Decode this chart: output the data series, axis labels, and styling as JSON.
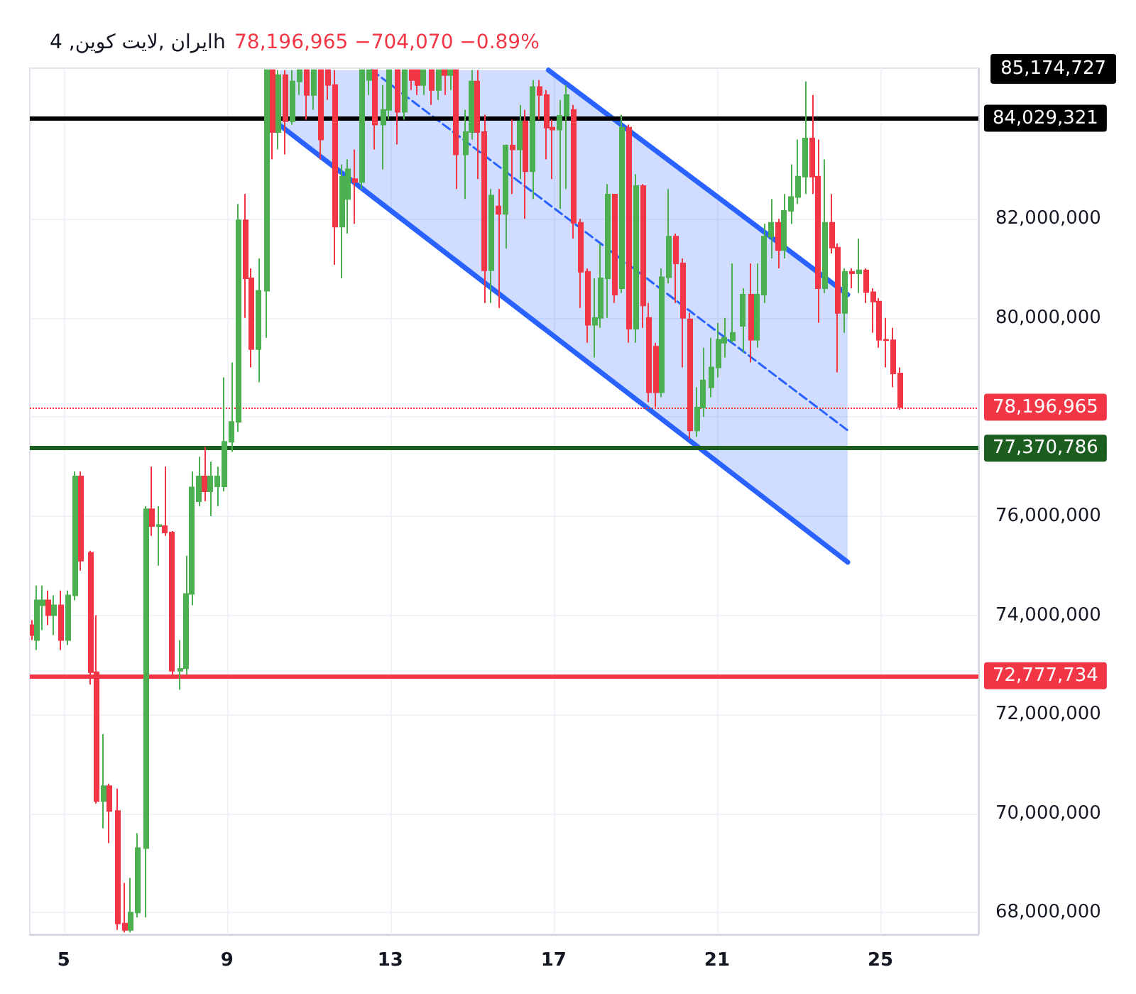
{
  "chart_data": {
    "type": "candlestick",
    "title": "ایران ,لایت کوین, 4h",
    "subtitle": "78,196,965 −704,070 −0.89%",
    "x": [
      4.24,
      4.34,
      4.48,
      4.62,
      4.76,
      4.93,
      5.1,
      5.28,
      5.42,
      5.66,
      5.8,
      5.97,
      6.11,
      6.31,
      6.49,
      6.63,
      6.8,
      7.01,
      7.15,
      7.32,
      7.49,
      7.66,
      7.84,
      8.01,
      8.15,
      8.32,
      8.46,
      8.6,
      8.77,
      8.94,
      9.12,
      9.29,
      9.46,
      9.6,
      9.78,
      9.98,
      10.12,
      10.26,
      10.43,
      10.61,
      10.78,
      10.95,
      11.12,
      11.3,
      11.47,
      11.64,
      11.82,
      11.96,
      12.13,
      12.3,
      12.47,
      12.61,
      12.82,
      12.96,
      13.17,
      13.34,
      13.51,
      13.65,
      13.82,
      14.0,
      14.17,
      14.34,
      14.48,
      14.62,
      14.83,
      15.0,
      15.14,
      15.31,
      15.48,
      15.66,
      15.83,
      16.0,
      16.18,
      16.31,
      16.49,
      16.66,
      16.83,
      16.97,
      17.15,
      17.32,
      17.49,
      17.66,
      17.84,
      18.01,
      18.15,
      18.32,
      18.49,
      18.67,
      18.84,
      19.01,
      19.19,
      19.33,
      19.5,
      19.64,
      19.81,
      19.98,
      20.16,
      20.33,
      20.5,
      20.67,
      20.85,
      21.02,
      21.19,
      21.37,
      21.64,
      21.82,
      21.99,
      22.16,
      22.34,
      22.51,
      22.65,
      22.82,
      22.99,
      23.17,
      23.34,
      23.48,
      23.65,
      23.82,
      23.96,
      24.13,
      24.31,
      24.48,
      24.65,
      24.83,
      24.97,
      25.14,
      25.31,
      25.48
    ],
    "ohlc": [
      [
        73800000,
        73900000,
        73500000,
        73600000
      ],
      [
        73500000,
        74600000,
        73300000,
        74300000
      ],
      [
        74200000,
        74600000,
        73700000,
        74300000
      ],
      [
        74300000,
        74500000,
        73800000,
        74000000
      ],
      [
        74000000,
        74400000,
        73600000,
        74200000
      ],
      [
        74200000,
        74500000,
        73300000,
        73500000
      ],
      [
        73500000,
        74500000,
        73400000,
        74400000
      ],
      [
        74400000,
        76900000,
        74300000,
        76800000
      ],
      [
        76800000,
        76900000,
        74900000,
        75100000
      ],
      [
        75260000,
        75300000,
        72600000,
        72850000
      ],
      [
        72850000,
        74000000,
        70200000,
        70250000
      ],
      [
        70250000,
        71600000,
        69700000,
        70550000
      ],
      [
        70550000,
        70600000,
        69400000,
        70050000
      ],
      [
        70050000,
        70500000,
        67650000,
        67780000
      ],
      [
        67780000,
        68600000,
        67600000,
        67650000
      ],
      [
        67650000,
        68700000,
        67600000,
        68000000
      ],
      [
        68000000,
        69600000,
        67900000,
        69300000
      ],
      [
        69300000,
        76200000,
        67900000,
        76140000
      ],
      [
        76140000,
        77000000,
        75600000,
        75800000
      ],
      [
        75800000,
        76200000,
        75000000,
        75820000
      ],
      [
        75800000,
        77000000,
        75600000,
        75670000
      ],
      [
        75670000,
        75700000,
        72800000,
        72880000
      ],
      [
        72880000,
        73500000,
        72500000,
        72920000
      ],
      [
        72930000,
        75200000,
        72800000,
        74430000
      ],
      [
        74430000,
        76900000,
        74200000,
        76580000
      ],
      [
        76300000,
        77200000,
        76200000,
        76800000
      ],
      [
        76800000,
        77400000,
        76300000,
        76500000
      ],
      [
        76500000,
        77100000,
        76000000,
        76800000
      ],
      [
        76600000,
        77000000,
        76200000,
        76800000
      ],
      [
        76600000,
        78800000,
        76500000,
        77500000
      ],
      [
        77500000,
        79100000,
        77300000,
        77900000
      ],
      [
        77900000,
        82300000,
        77700000,
        81970000
      ],
      [
        81970000,
        82500000,
        80000000,
        80800000
      ],
      [
        80800000,
        81000000,
        79000000,
        79370000
      ],
      [
        79370000,
        81200000,
        78700000,
        80550000
      ],
      [
        80550000,
        85000000,
        79600000,
        85000000
      ],
      [
        85000000,
        85000000,
        83200000,
        83750000
      ],
      [
        83750000,
        85000000,
        83400000,
        84900000
      ],
      [
        84900000,
        85000000,
        83300000,
        83970000
      ],
      [
        83970000,
        85000000,
        83900000,
        84770000
      ],
      [
        84770000,
        85000000,
        84500000,
        85000000
      ],
      [
        85000000,
        85000000,
        84000000,
        84500000
      ],
      [
        84500000,
        85000000,
        84200000,
        85000000
      ],
      [
        85000000,
        85000000,
        83200000,
        83600000
      ],
      [
        85000000,
        85000000,
        84400000,
        84700000
      ],
      [
        84700000,
        85000000,
        81070000,
        81840000
      ],
      [
        81840000,
        83100000,
        80800000,
        82850000
      ],
      [
        82400000,
        83200000,
        81700000,
        83000000
      ],
      [
        82800000,
        83400000,
        81900000,
        82740000
      ],
      [
        82740000,
        85000000,
        82600000,
        85000000
      ],
      [
        84800000,
        85000000,
        84500000,
        85000000
      ],
      [
        85000000,
        85000000,
        83400000,
        83900000
      ],
      [
        83900000,
        84700000,
        83000000,
        84200000
      ],
      [
        84200000,
        85000000,
        84000000,
        85000000
      ],
      [
        85000000,
        85000000,
        83500000,
        84160000
      ],
      [
        84160000,
        85000000,
        84000000,
        85000000
      ],
      [
        85000000,
        85000000,
        84600000,
        84800000
      ],
      [
        85000000,
        85000000,
        84500000,
        84700000
      ],
      [
        84700000,
        85000000,
        84500000,
        85000000
      ],
      [
        85000000,
        85000000,
        84300000,
        84600000
      ],
      [
        84600000,
        85000000,
        84400000,
        85000000
      ],
      [
        85000000,
        85000000,
        84500000,
        84900000
      ],
      [
        84900000,
        85000000,
        84600000,
        85000000
      ],
      [
        85000000,
        85000000,
        82600000,
        83300000
      ],
      [
        83300000,
        84200000,
        82400000,
        83750000
      ],
      [
        83750000,
        85000000,
        83600000,
        84770000
      ],
      [
        84770000,
        85000000,
        82800000,
        83750000
      ],
      [
        83750000,
        84100000,
        80300000,
        80960000
      ],
      [
        80960000,
        82600000,
        80300000,
        82470000
      ],
      [
        82250000,
        82600000,
        80200000,
        82100000
      ],
      [
        82100000,
        83500000,
        81400000,
        83480000
      ],
      [
        83480000,
        84000000,
        82500000,
        83400000
      ],
      [
        83400000,
        84300000,
        82800000,
        83970000
      ],
      [
        83970000,
        84200000,
        82000000,
        82960000
      ],
      [
        82960000,
        84800000,
        82400000,
        84660000
      ],
      [
        84660000,
        84800000,
        84000000,
        84500000
      ],
      [
        84500000,
        84600000,
        83200000,
        83840000
      ],
      [
        83840000,
        84000000,
        82800000,
        83800000
      ],
      [
        83800000,
        84400000,
        82200000,
        84080000
      ],
      [
        84080000,
        84700000,
        82600000,
        84500000
      ],
      [
        84200000,
        84300000,
        81600000,
        81920000
      ],
      [
        81920000,
        82000000,
        80200000,
        80930000
      ],
      [
        80930000,
        81000000,
        79500000,
        79860000
      ],
      [
        79860000,
        80800000,
        79200000,
        80000000
      ],
      [
        80000000,
        81500000,
        79800000,
        80800000
      ],
      [
        80800000,
        82700000,
        80000000,
        82490000
      ],
      [
        82490000,
        82500000,
        80300000,
        80470000
      ],
      [
        80600000,
        84100000,
        80500000,
        83840000
      ],
      [
        83840000,
        83900000,
        79500000,
        79780000
      ],
      [
        79780000,
        82900000,
        79500000,
        82660000
      ],
      [
        82660000,
        82700000,
        79800000,
        80250000
      ],
      [
        80000000,
        80300000,
        78300000,
        78500000
      ],
      [
        79420000,
        79500000,
        78200000,
        78500000
      ],
      [
        78500000,
        81000000,
        78400000,
        80820000
      ],
      [
        80820000,
        82600000,
        80700000,
        81640000
      ],
      [
        81640000,
        81700000,
        80300000,
        81100000
      ],
      [
        81100000,
        81200000,
        79000000,
        80000000
      ],
      [
        79970000,
        80100000,
        77550000,
        77730000
      ],
      [
        77730000,
        78600000,
        77600000,
        78190000
      ],
      [
        78190000,
        79400000,
        78000000,
        78740000
      ],
      [
        78600000,
        79600000,
        78400000,
        79000000
      ],
      [
        79000000,
        79900000,
        78800000,
        79560000
      ],
      [
        79500000,
        80000000,
        79200000,
        79600000
      ],
      [
        79550000,
        81100000,
        79500000,
        79700000
      ],
      [
        79840000,
        80600000,
        79300000,
        80470000
      ],
      [
        80470000,
        81100000,
        79100000,
        79560000
      ],
      [
        79560000,
        81100000,
        79400000,
        80470000
      ],
      [
        80470000,
        81900000,
        80300000,
        81640000
      ],
      [
        81640000,
        82400000,
        81200000,
        81920000
      ],
      [
        81920000,
        82000000,
        81000000,
        81370000
      ],
      [
        81370000,
        82500000,
        81200000,
        82160000
      ],
      [
        82160000,
        83100000,
        81900000,
        82440000
      ],
      [
        82440000,
        83600000,
        82300000,
        82850000
      ],
      [
        82850000,
        84770000,
        82500000,
        83620000
      ],
      [
        83620000,
        84500000,
        82500000,
        82850000
      ],
      [
        82850000,
        83600000,
        79900000,
        80600000
      ],
      [
        80600000,
        83200000,
        80500000,
        81920000
      ],
      [
        81920000,
        82500000,
        81300000,
        81420000
      ],
      [
        81420000,
        81500000,
        78900000,
        80100000
      ],
      [
        80100000,
        81000000,
        79700000,
        80930000
      ],
      [
        80930000,
        81000000,
        80600000,
        80900000
      ],
      [
        80900000,
        81600000,
        80500000,
        80960000
      ],
      [
        80960000,
        81000000,
        80300000,
        80520000
      ],
      [
        80520000,
        80600000,
        79700000,
        80330000
      ],
      [
        80330000,
        80400000,
        79400000,
        79560000
      ],
      [
        79560000,
        80000000,
        79000000,
        79550000
      ],
      [
        79550000,
        79800000,
        78600000,
        78880000
      ],
      [
        78880000,
        79000000,
        78150000,
        78200000
      ]
    ],
    "colors": [
      "#f23645",
      "#4caf50",
      "#4caf50",
      "#f23645",
      "#4caf50",
      "#f23645",
      "#4caf50",
      "#4caf50",
      "#f23645",
      "#f23645",
      "#f23645",
      "#4caf50",
      "#f23645",
      "#f23645",
      "#f23645",
      "#4caf50",
      "#4caf50",
      "#4caf50",
      "#f23645",
      "#4caf50",
      "#f23645",
      "#f23645",
      "#4caf50",
      "#4caf50",
      "#4caf50",
      "#4caf50",
      "#f23645",
      "#4caf50",
      "#4caf50",
      "#4caf50",
      "#4caf50",
      "#4caf50",
      "#f23645",
      "#f23645",
      "#4caf50",
      "#4caf50",
      "#f23645",
      "#4caf50",
      "#f23645",
      "#4caf50",
      "#4caf50",
      "#f23645",
      "#4caf50",
      "#f23645",
      "#f23645",
      "#f23645",
      "#4caf50",
      "#4caf50",
      "#f23645",
      "#4caf50",
      "#4caf50",
      "#f23645",
      "#4caf50",
      "#4caf50",
      "#f23645",
      "#4caf50",
      "#f23645",
      "#f23645",
      "#4caf50",
      "#f23645",
      "#4caf50",
      "#f23645",
      "#4caf50",
      "#f23645",
      "#4caf50",
      "#4caf50",
      "#f23645",
      "#f23645",
      "#4caf50",
      "#f23645",
      "#4caf50",
      "#f23645",
      "#4caf50",
      "#f23645",
      "#4caf50",
      "#f23645",
      "#f23645",
      "#f23645",
      "#4caf50",
      "#4caf50",
      "#f23645",
      "#f23645",
      "#f23645",
      "#4caf50",
      "#4caf50",
      "#4caf50",
      "#f23645",
      "#4caf50",
      "#f23645",
      "#4caf50",
      "#f23645",
      "#f23645",
      "#f23645",
      "#4caf50",
      "#4caf50",
      "#f23645",
      "#f23645",
      "#f23645",
      "#4caf50",
      "#4caf50",
      "#4caf50",
      "#4caf50",
      "#4caf50",
      "#4caf50",
      "#4caf50",
      "#f23645",
      "#4caf50",
      "#4caf50",
      "#4caf50",
      "#f23645",
      "#4caf50",
      "#4caf50",
      "#4caf50",
      "#4caf50",
      "#f23645",
      "#f23645",
      "#4caf50",
      "#f23645",
      "#f23645",
      "#4caf50",
      "#f23645",
      "#4caf50",
      "#f23645",
      "#f23645",
      "#f23645",
      "#f23645",
      "#f23645",
      "#f23645"
    ],
    "series": [
      {
        "type": "line",
        "color": "#2962ff",
        "x": [
          16.87,
          24.2
        ],
        "values": [
          85000000,
          80470000
        ]
      },
      {
        "type": "line",
        "color": "#2962ff",
        "x": [
          10.29,
          24.2
        ],
        "values": [
          83890000,
          75070000
        ]
      },
      {
        "type": "line",
        "color": "#2962ff",
        "line_style": "dashed",
        "x": [
          10.29,
          12.54,
          16.87,
          24.2
        ],
        "values": [
          null,
          85000000,
          82300000,
          77730000
        ],
        "lower": [
          83890000,
          82460000,
          79720000,
          75070000
        ],
        "upper": [
          85000000,
          85000000,
          85000000,
          80470000
        ]
      }
    ],
    "ref_lines": [
      {
        "axis": "y",
        "value": 84029321,
        "label": "84,029,321",
        "color": "#000000",
        "line_style": "solid"
      },
      {
        "axis": "y",
        "value": 78196965,
        "label": "78,196,965",
        "color": "#f23645",
        "line_style": "dotted"
      },
      {
        "axis": "y",
        "value": 77370786,
        "label": "77,370,786",
        "color": "#1b5e20",
        "line_style": "solid"
      },
      {
        "axis": "y",
        "value": 72777734,
        "label": "72,777,734",
        "color": "#f23645",
        "line_style": "solid"
      }
    ],
    "annotations": [
      "85,174,727"
    ],
    "xlim": [
      4.17,
      27.4
    ],
    "xticks": [
      5,
      9,
      13,
      17,
      21,
      25
    ],
    "ylim": [
      67560000,
      85040000
    ],
    "yticks": [
      {
        "value": 68000000,
        "label": "68,000,000"
      },
      {
        "value": 70000000,
        "label": "70,000,000"
      },
      {
        "value": 72000000,
        "label": "72,000,000"
      },
      {
        "value": 74000000,
        "label": "74,000,000"
      },
      {
        "value": 76000000,
        "label": "76,000,000"
      },
      {
        "value": 78000000,
        "label": null
      },
      {
        "value": 80000000,
        "label": "80,000,000"
      },
      {
        "value": 82000000,
        "label": "82,000,000"
      },
      {
        "value": 84000000,
        "label": null
      }
    ],
    "grid": true
  }
}
